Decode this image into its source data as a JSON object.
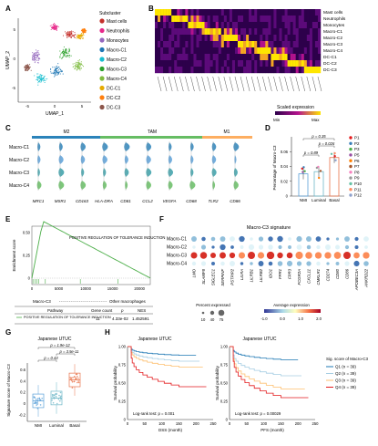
{
  "panels": [
    "A",
    "B",
    "C",
    "D",
    "E",
    "F",
    "G",
    "H"
  ],
  "colors": {
    "subclusters": [
      "#c4302b",
      "#e7298a",
      "#9467bd",
      "#1f77b4",
      "#17becf",
      "#2ca02c",
      "#7fbc41",
      "#e6ab02",
      "#ff7f0e",
      "#8c564b"
    ],
    "heat_low": "#2d004b",
    "heat_high": "#ffe600",
    "m2": "#2b83ba",
    "tam": "#66bd63",
    "m1": "#fdae61",
    "q_colors": [
      "#1f78b4",
      "#a6cee3",
      "#fdbf6f",
      "#e31a1c"
    ],
    "nmi": "#5aa0d8",
    "luminal": "#6fb8c8",
    "basal": "#e8734a"
  },
  "panel_a": {
    "xlabel": "UMAP_1",
    "ylabel": "UMAP_2",
    "xticks": [
      "-5",
      "0",
      "5"
    ],
    "yticks": [
      "-5",
      "0",
      "5"
    ],
    "legend_title": "Subcluster",
    "subclusters": [
      "Mast cells",
      "Neutrophils",
      "Monocytes",
      "Macro-C1",
      "Macro-C2",
      "Macro-C3",
      "Macro-C4",
      "DC-C1",
      "DC-C2",
      "DC-C3"
    ]
  },
  "panel_b": {
    "rows": [
      "Mast cells",
      "Neutrophils",
      "Monocytes",
      "Macro-C1",
      "Macro-C2",
      "Macro-C3",
      "Macro-C4",
      "DC-C1",
      "DC-C2",
      "DC-C3"
    ],
    "colorbar_label": "Scaled expression",
    "colorbar_min": "Min",
    "colorbar_max": "Max"
  },
  "panel_c": {
    "groups": [
      {
        "label": "M2"
      },
      {
        "label": "TAM"
      },
      {
        "label": "M1"
      }
    ],
    "rows": [
      "Macro-C1",
      "Macro-C2",
      "Macro-C3",
      "Macro-C4"
    ],
    "genes": [
      "MRC1",
      "MSR1",
      "CD163",
      "HLA-DRA",
      "CD81",
      "CCL2",
      "VEGFA",
      "CD68",
      "TLR2",
      "CD86"
    ]
  },
  "chart_data": [
    {
      "type": "bar",
      "panel": "D",
      "categories": [
        "NMI",
        "Luminal",
        "Basal"
      ],
      "values": [
        0.03,
        0.033,
        0.052
      ],
      "ylabel": "Percentage of Macro-C3",
      "yticks": [
        "0",
        "0.02",
        "0.04",
        "0.06"
      ],
      "ylim": [
        0,
        0.08
      ],
      "pvalues": [
        "p = 0.35",
        "p = 0.026",
        "p = 0.89"
      ],
      "legend": [
        "P1",
        "P2",
        "P3",
        "P5",
        "P6",
        "P7",
        "P8",
        "P9",
        "P10",
        "P11",
        "P12"
      ]
    },
    {
      "type": "line",
      "panel": "E",
      "ylabel": "Enrichment score",
      "yticks": [
        "0",
        "0.25",
        "0.50"
      ],
      "xticks": [
        "0",
        "5000",
        "10000",
        "15000",
        "20000"
      ],
      "xaxis_left": "Macro-C3",
      "xaxis_right": "Other macrophages",
      "annotation": "POSITIVE REGULATION OF TOLERANCE INDUCTION",
      "table_headers": [
        "Pathway",
        "Gene count",
        "p",
        "NES"
      ],
      "table_row": [
        "POSITIVE REGULATION OF TOLERANCE INDUCTION",
        "11",
        "4.33e-02",
        "1.452591"
      ]
    },
    {
      "type": "scatter",
      "panel": "F",
      "title": "Macro-C3 signature",
      "rows": [
        "Macro-C1",
        "Macro-C2",
        "Macro-C3",
        "Macro-C4"
      ],
      "genes": [
        "LMO",
        "SLAMF8",
        "SIGLEC1",
        "SERPINF",
        "PSTPIP2",
        "LILRA",
        "LILRB1",
        "LILRB2",
        "IDO1",
        "FPR1",
        "FPR3",
        "FCGR2A",
        "CXCL11",
        "CMKLR1",
        "CD274",
        "CD80",
        "CD86",
        "APOBEC3A",
        "ANKRD22"
      ],
      "size_legend_title": "Percent expressed",
      "size_legend_values": [
        "10",
        "40",
        "75"
      ],
      "color_legend_title": "Average expression",
      "color_legend_ticks": [
        "-1.0",
        "0.0",
        "1.0",
        "2.0"
      ]
    },
    {
      "type": "box",
      "panel": "G",
      "title": "Japanese UTUC",
      "categories": [
        "NMI",
        "Luminal",
        "Basal"
      ],
      "ylabel": "Signature score of Macro-C3",
      "yticks": [
        "-0.2",
        "0",
        "0.2",
        "0.4",
        "0.6"
      ],
      "medians": [
        0.05,
        0.1,
        0.42
      ],
      "pvalues": [
        "p = 1.9e-12",
        "p = 3.5e-11",
        "p = 0.43"
      ]
    },
    {
      "type": "line",
      "panel": "H",
      "title": "Japanese UTUC",
      "plots": [
        {
          "xlabel": "DSS (month)",
          "ylabel": "Survival probability",
          "logrank": "Log-rank test: p = 0.001"
        },
        {
          "xlabel": "PFS (month)",
          "ylabel": "Survival probability",
          "logrank": "Log-rank test: p = 0.00029"
        }
      ],
      "xticks": [
        "0",
        "50",
        "100",
        "150",
        "200",
        "250"
      ],
      "yticks": [
        "0",
        "0.25",
        "0.50",
        "0.75",
        "1.00"
      ],
      "legend_title": "Sig. score of Macro-C3",
      "series": [
        {
          "name": "Q1 (n = 39)"
        },
        {
          "name": "Q2 (n = 39)"
        },
        {
          "name": "Q3 (n = 39)"
        },
        {
          "name": "Q4 (n = 39)"
        }
      ]
    }
  ]
}
